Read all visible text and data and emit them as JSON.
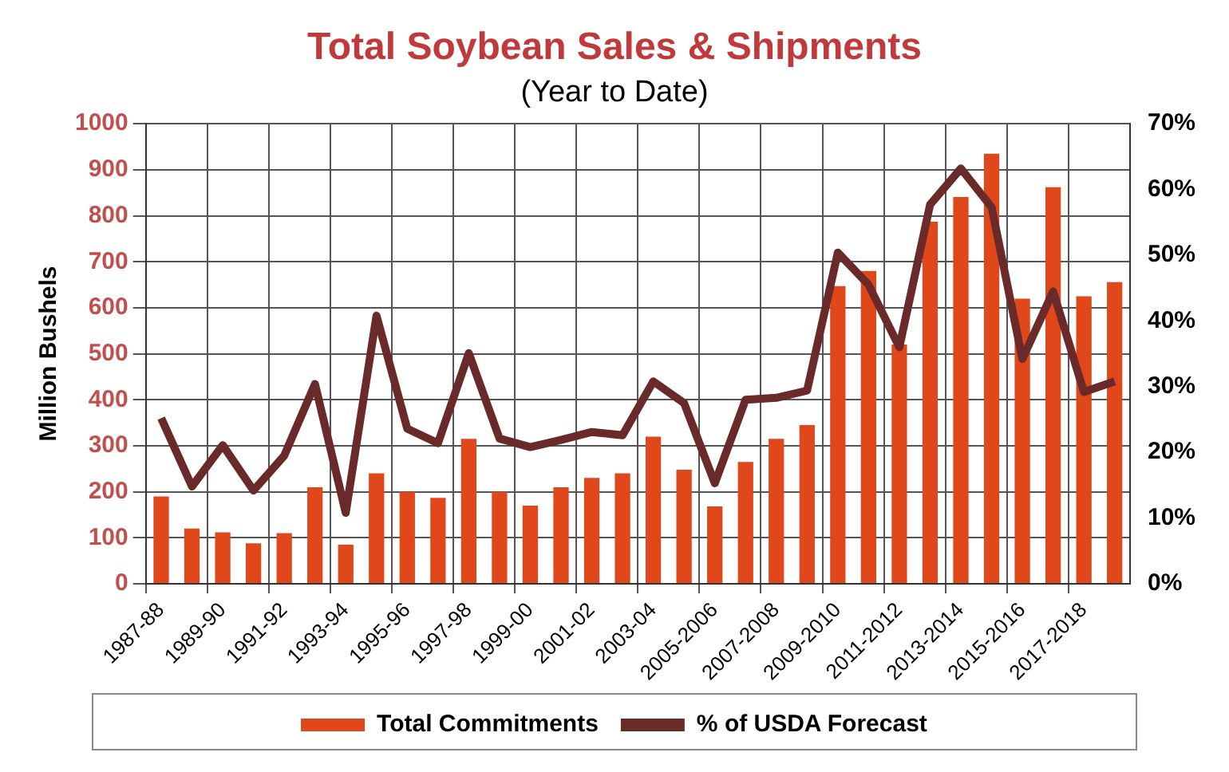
{
  "chart_data": {
    "type": "bar",
    "title": "Total Soybean Sales & Shipments",
    "subtitle": "(Year to Date)",
    "ylabel": "Million Bushels",
    "categories": [
      "1987-88",
      null,
      "1989-90",
      null,
      "1991-92",
      null,
      "1993-94",
      null,
      "1995-96",
      null,
      "1997-98",
      null,
      "1999-00",
      null,
      "2001-02",
      null,
      "2003-04",
      null,
      "2005-2006",
      null,
      "2007-2008",
      null,
      "2009-2010",
      null,
      "2011-2012",
      null,
      "2013-2014",
      null,
      "2015-2016",
      null,
      "2017-2018",
      null
    ],
    "series": [
      {
        "name": "Total Commitments",
        "color": "#e0471a",
        "values": [
          190,
          120,
          112,
          88,
          110,
          210,
          85,
          240,
          200,
          187,
          315,
          200,
          170,
          210,
          230,
          240,
          320,
          248,
          168,
          265,
          315,
          345,
          647,
          680,
          520,
          787,
          841,
          935,
          620,
          862,
          625,
          656
        ]
      },
      {
        "name": "% of USDA Forecast",
        "type": "line",
        "axis": "y2",
        "color": "#6b2a2a",
        "values": [
          25.2,
          14.8,
          21.1,
          14.2,
          19.5,
          30.4,
          10.8,
          40.8,
          23.6,
          21.4,
          35.1,
          22.1,
          20.8,
          21.9,
          23.1,
          22.6,
          30.8,
          27.5,
          15.3,
          28,
          28.3,
          29.4,
          50.4,
          45.5,
          36,
          57.7,
          63.2,
          57.3,
          34.2,
          44.5,
          29.2,
          30.8
        ]
      }
    ],
    "ylim": [
      0,
      1000
    ],
    "yticks": [
      0,
      100,
      200,
      300,
      400,
      500,
      600,
      700,
      800,
      900,
      1000
    ],
    "y2lim": [
      0,
      70
    ],
    "y2ticks": [
      {
        "value": 0,
        "label": "0%"
      },
      {
        "value": 10,
        "label": "10%"
      },
      {
        "value": 20,
        "label": "20%"
      },
      {
        "value": 30,
        "label": "30%"
      },
      {
        "value": 40,
        "label": "40%"
      },
      {
        "value": 50,
        "label": "50%"
      },
      {
        "value": 60,
        "label": "60%"
      },
      {
        "value": 70,
        "label": "70%"
      }
    ],
    "grid": true,
    "legend": "bottom",
    "marker": "none"
  }
}
